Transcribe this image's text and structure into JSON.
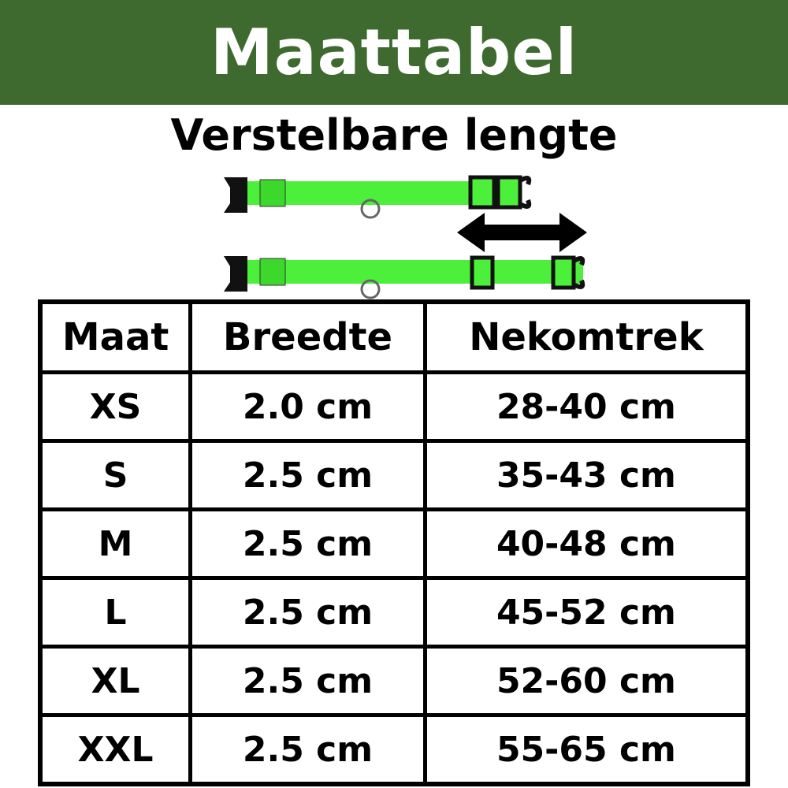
{
  "header": {
    "title": "Maattabel",
    "background": "#3e6a2f"
  },
  "subtitle": "Verstelbare lengte",
  "illustration": {
    "description_icon": "adjustable-collar",
    "accent": "#4cf03a"
  },
  "table": {
    "columns": [
      "Maat",
      "Breedte",
      "Nekomtrek"
    ],
    "rows": [
      [
        "XS",
        "2.0 cm",
        "28-40 cm"
      ],
      [
        "S",
        "2.5 cm",
        "35-43 cm"
      ],
      [
        "M",
        "2.5 cm",
        "40-48 cm"
      ],
      [
        "L",
        "2.5 cm",
        "45-52 cm"
      ],
      [
        "XL",
        "2.5 cm",
        "52-60 cm"
      ],
      [
        "XXL",
        "2.5 cm",
        "55-65 cm"
      ]
    ]
  }
}
